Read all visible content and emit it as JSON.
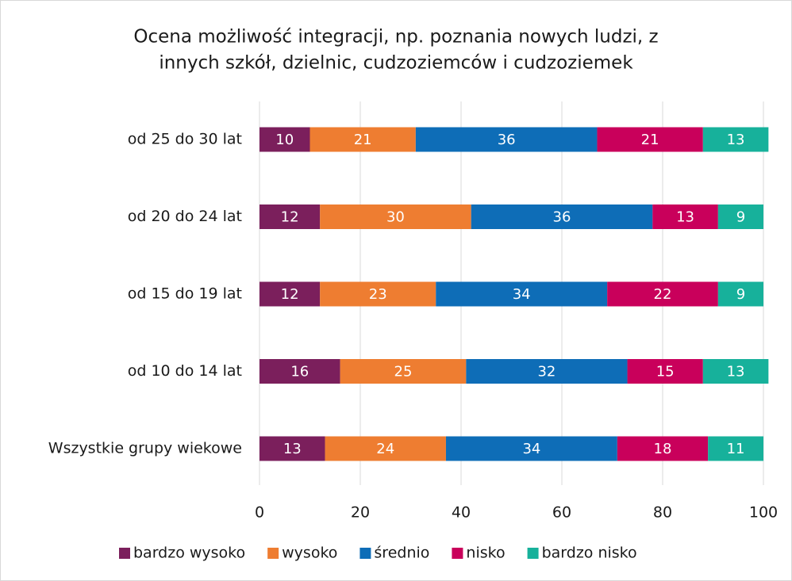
{
  "chart_data": {
    "type": "stacked-barh",
    "title": [
      "Ocena możliwość integracji, np. poznania nowych ludzi, z",
      "innych szkół, dzielnic, cudzoziemców i cudzoziemek"
    ],
    "categories": [
      "od 25 do 30 lat",
      "od 20 do 24 lat",
      "od 15 do 19 lat",
      "od 10 do 14 lat",
      "Wszystkie grupy wiekowe"
    ],
    "series": [
      {
        "name": "bardzo wysoko",
        "color": "#7b1f5c",
        "values": [
          10,
          12,
          12,
          16,
          13
        ]
      },
      {
        "name": "wysoko",
        "color": "#ee7d31",
        "values": [
          21,
          30,
          23,
          25,
          24
        ]
      },
      {
        "name": "średnio",
        "color": "#0e6db7",
        "values": [
          36,
          36,
          34,
          32,
          34
        ]
      },
      {
        "name": "nisko",
        "color": "#c9005b",
        "values": [
          21,
          13,
          22,
          15,
          18
        ]
      },
      {
        "name": "bardzo nisko",
        "color": "#17b19b",
        "values": [
          13,
          9,
          9,
          13,
          11
        ]
      }
    ],
    "xlim": [
      0,
      100
    ],
    "xticks": [
      0,
      20,
      40,
      60,
      80,
      100
    ],
    "grid": true,
    "legend": "bottom"
  }
}
